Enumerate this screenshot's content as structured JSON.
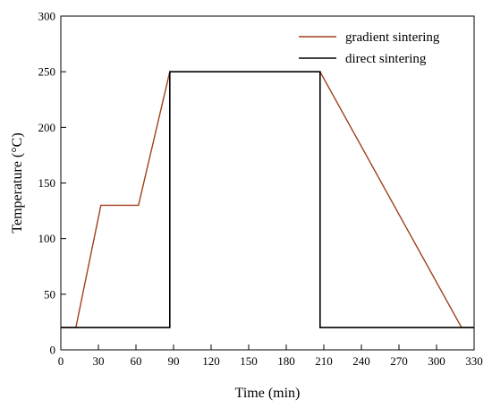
{
  "chart_data": {
    "type": "line",
    "title": "",
    "xlabel": "Time (min)",
    "ylabel": "Temperature (°C)",
    "xlim": [
      0,
      330
    ],
    "ylim": [
      0,
      300
    ],
    "x_ticks": [
      "0",
      "30",
      "60",
      "90",
      "120",
      "150",
      "180",
      "210",
      "240",
      "270",
      "300",
      "330"
    ],
    "y_ticks": [
      "0",
      "50",
      "100",
      "150",
      "200",
      "250",
      "300"
    ],
    "grid": false,
    "legend_position": "top-right",
    "series": [
      {
        "name": "gradient sintering",
        "color": "#a0401a",
        "x": [
          0,
          12,
          32,
          62,
          87,
          207,
          320,
          330
        ],
        "y": [
          20,
          20,
          130,
          130,
          250,
          250,
          20,
          20
        ]
      },
      {
        "name": "direct sintering",
        "color": "#000000",
        "x": [
          0,
          87,
          87,
          207,
          207,
          330
        ],
        "y": [
          20,
          20,
          250,
          250,
          20,
          20
        ]
      }
    ]
  }
}
